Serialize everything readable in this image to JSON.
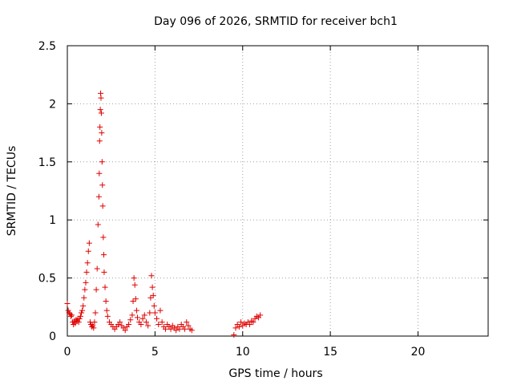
{
  "chart_data": {
    "type": "scatter",
    "title": "Day 096 of 2026, SRMTID for receiver bch1",
    "xlabel": "GPS time / hours",
    "ylabel": "SRMTID / TECUs",
    "xlim": [
      0,
      24
    ],
    "ylim": [
      0,
      2.5
    ],
    "xticks": [
      0,
      5,
      10,
      15,
      20
    ],
    "xtick_labels": [
      "0",
      "5",
      "10",
      "15",
      "20"
    ],
    "yticks": [
      0,
      0.5,
      1,
      1.5,
      2,
      2.5
    ],
    "ytick_labels": [
      "0",
      "0.5",
      "1",
      "1.5",
      "2",
      "2.5"
    ],
    "grid": true,
    "marker": "plus",
    "colors": {
      "points": "#e00000",
      "grid": "#a0a0a0",
      "axes": "#000000"
    },
    "series": [
      {
        "name": "bch1",
        "x": [
          0.0,
          0.05,
          0.1,
          0.15,
          0.2,
          0.25,
          0.3,
          0.35,
          0.4,
          0.45,
          0.5,
          0.55,
          0.6,
          0.65,
          0.7,
          0.75,
          0.8,
          0.85,
          0.9,
          0.95,
          1.0,
          1.05,
          1.1,
          1.15,
          1.2,
          1.25,
          1.3,
          1.35,
          1.4,
          1.45,
          1.5,
          1.55,
          1.6,
          1.65,
          1.7,
          1.75,
          1.8,
          1.82,
          1.84,
          1.86,
          1.88,
          1.9,
          1.92,
          1.94,
          1.96,
          1.98,
          2.0,
          2.02,
          2.05,
          2.08,
          2.1,
          2.15,
          2.2,
          2.25,
          2.3,
          2.4,
          2.5,
          2.6,
          2.7,
          2.8,
          2.9,
          3.0,
          3.1,
          3.2,
          3.3,
          3.4,
          3.5,
          3.6,
          3.7,
          3.75,
          3.8,
          3.85,
          3.9,
          3.95,
          4.0,
          4.1,
          4.2,
          4.3,
          4.4,
          4.5,
          4.6,
          4.7,
          4.75,
          4.8,
          4.85,
          4.9,
          4.95,
          5.0,
          5.1,
          5.2,
          5.3,
          5.4,
          5.5,
          5.6,
          5.7,
          5.8,
          5.9,
          6.0,
          6.1,
          6.2,
          6.3,
          6.4,
          6.5,
          6.6,
          6.7,
          6.8,
          6.9,
          7.0,
          7.1,
          9.5,
          9.6,
          9.7,
          9.8,
          9.9,
          10.0,
          10.1,
          10.2,
          10.3,
          10.4,
          10.5,
          10.6,
          10.7,
          10.8,
          10.9,
          11.0
        ],
        "y": [
          0.28,
          0.22,
          0.2,
          0.19,
          0.17,
          0.18,
          0.12,
          0.1,
          0.13,
          0.11,
          0.14,
          0.13,
          0.15,
          0.12,
          0.15,
          0.17,
          0.2,
          0.22,
          0.26,
          0.33,
          0.4,
          0.46,
          0.55,
          0.63,
          0.73,
          0.8,
          0.12,
          0.1,
          0.08,
          0.09,
          0.07,
          0.12,
          0.2,
          0.4,
          0.58,
          0.96,
          1.2,
          1.4,
          1.68,
          1.8,
          1.95,
          2.09,
          2.05,
          1.92,
          1.75,
          1.5,
          1.3,
          1.12,
          0.85,
          0.7,
          0.55,
          0.42,
          0.3,
          0.22,
          0.17,
          0.12,
          0.1,
          0.08,
          0.06,
          0.08,
          0.1,
          0.12,
          0.09,
          0.07,
          0.05,
          0.08,
          0.1,
          0.14,
          0.18,
          0.3,
          0.5,
          0.44,
          0.32,
          0.22,
          0.16,
          0.12,
          0.1,
          0.15,
          0.18,
          0.12,
          0.09,
          0.2,
          0.33,
          0.52,
          0.42,
          0.35,
          0.26,
          0.2,
          0.15,
          0.1,
          0.22,
          0.12,
          0.08,
          0.06,
          0.1,
          0.08,
          0.06,
          0.09,
          0.07,
          0.05,
          0.08,
          0.06,
          0.1,
          0.08,
          0.06,
          0.12,
          0.09,
          0.06,
          0.05,
          0.01,
          0.07,
          0.1,
          0.08,
          0.12,
          0.09,
          0.11,
          0.1,
          0.12,
          0.1,
          0.13,
          0.12,
          0.15,
          0.17,
          0.16,
          0.18
        ]
      }
    ]
  }
}
